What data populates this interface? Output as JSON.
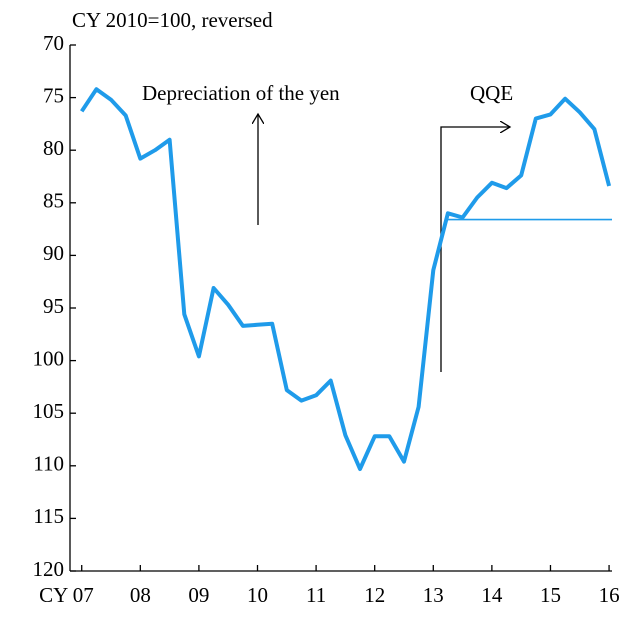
{
  "chart_data": {
    "type": "line",
    "subtitle": "CY 2010=100, reversed",
    "annotations": [
      "Depreciation of the yen",
      "QQE"
    ],
    "x": [
      2007.0,
      2007.25,
      2007.5,
      2007.75,
      2008.0,
      2008.25,
      2008.5,
      2008.75,
      2009.0,
      2009.25,
      2009.5,
      2009.75,
      2010.0,
      2010.25,
      2010.5,
      2010.75,
      2011.0,
      2011.25,
      2011.5,
      2011.75,
      2012.0,
      2012.25,
      2012.5,
      2012.75,
      2013.0,
      2013.25,
      2013.5,
      2013.75,
      2014.0,
      2014.25,
      2014.5,
      2014.75,
      2015.0,
      2015.25,
      2015.5,
      2015.75,
      2016.0
    ],
    "series": [
      {
        "color": "#1f9bea",
        "values": [
          76.3,
          74.2,
          75.2,
          76.7,
          80.8,
          80.0,
          79.0,
          95.6,
          99.6,
          93.1,
          94.7,
          96.7,
          96.6,
          96.5,
          102.8,
          103.8,
          103.3,
          101.9,
          107.1,
          110.3,
          107.2,
          107.2,
          109.6,
          104.4,
          91.4,
          86.0,
          86.4,
          84.5,
          83.1,
          83.6,
          82.4,
          77.0,
          76.6,
          75.1,
          76.4,
          78.0,
          83.4
        ]
      },
      {
        "color": "#1f9bea",
        "x": [
          2013.25,
          2016.05
        ],
        "values": [
          86.6,
          86.6
        ]
      }
    ],
    "xlim": [
      2006.8,
      2016.05
    ],
    "xticks": [
      {
        "value": 2007,
        "label": "CY 07"
      },
      {
        "value": 2008,
        "label": "08"
      },
      {
        "value": 2009,
        "label": "09"
      },
      {
        "value": 2010,
        "label": "10"
      },
      {
        "value": 2011,
        "label": "11"
      },
      {
        "value": 2012,
        "label": "12"
      },
      {
        "value": 2013,
        "label": "13"
      },
      {
        "value": 2014,
        "label": "14"
      },
      {
        "value": 2015,
        "label": "15"
      },
      {
        "value": 2016,
        "label": "16"
      }
    ],
    "ylim": [
      70,
      120
    ],
    "y_reversed": true,
    "yticks": [
      70,
      75,
      80,
      85,
      90,
      95,
      100,
      105,
      110,
      115,
      120
    ]
  }
}
